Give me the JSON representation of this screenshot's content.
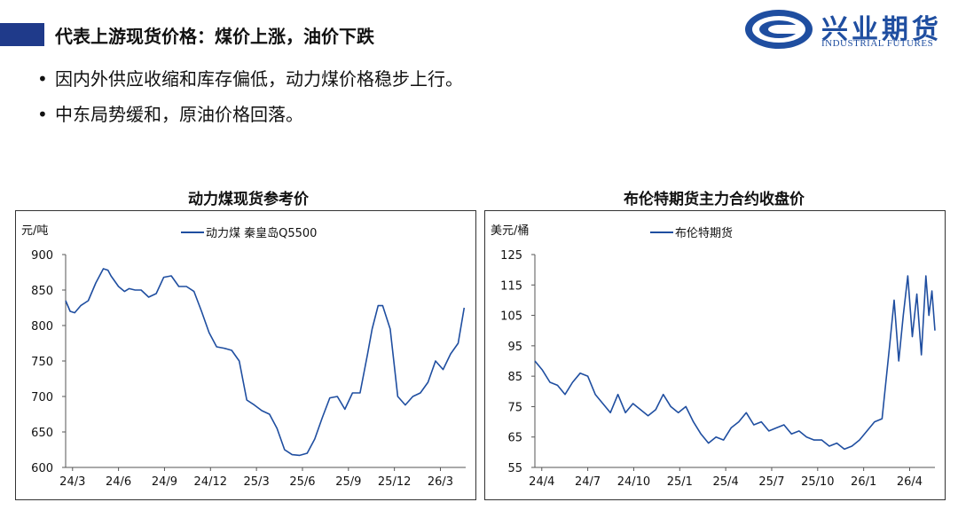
{
  "header": {
    "title": "代表上游现货价格：煤价上涨，油价下跌",
    "logo_cn": "兴业期货",
    "logo_en": "INDUSTRIAL FUTURES"
  },
  "bullets": [
    "因内外供应收缩和库存偏低，动力煤价格稳步上行。",
    "中东局势缓和，原油价格回落。"
  ],
  "colors": {
    "accent": "#1f3a8a",
    "line": "#1f4ea0",
    "logo": "#1f4ea0"
  },
  "chart_data": [
    {
      "type": "line",
      "title": "动力煤现货参考价",
      "ylabel": "元/吨",
      "ylim": [
        600,
        900
      ],
      "yticks": [
        600,
        650,
        700,
        750,
        800,
        850,
        900
      ],
      "xticklabels": [
        "24/3",
        "24/6",
        "24/9",
        "24/12",
        "25/3",
        "25/6",
        "25/9",
        "25/12",
        "26/3"
      ],
      "xlim": [
        0,
        26.5
      ],
      "grid": false,
      "legend": "top",
      "series": [
        {
          "name": "动力煤 秦皇岛Q5500",
          "x": [
            0,
            0.3,
            0.6,
            1.0,
            1.5,
            2.0,
            2.5,
            2.8,
            3.0,
            3.5,
            3.9,
            4.2,
            4.6,
            5.0,
            5.5,
            6.0,
            6.5,
            7.0,
            7.5,
            8.0,
            8.5,
            9.0,
            9.5,
            10.0,
            10.5,
            11.0,
            11.5,
            12.0,
            12.5,
            13.0,
            13.5,
            14.0,
            14.5,
            15.0,
            15.5,
            16.0,
            16.5,
            17.0,
            17.5,
            18.0,
            18.5,
            19.0,
            19.5,
            20.0,
            20.3,
            20.7,
            21.0,
            21.5,
            22.0,
            22.5,
            23.0,
            23.5,
            24.0,
            24.5,
            25.0,
            25.5,
            26.0,
            26.4
          ],
          "values": [
            835,
            820,
            818,
            828,
            835,
            860,
            880,
            878,
            870,
            855,
            848,
            852,
            850,
            850,
            840,
            845,
            868,
            870,
            855,
            855,
            848,
            820,
            790,
            770,
            768,
            765,
            750,
            695,
            688,
            680,
            675,
            655,
            625,
            618,
            617,
            620,
            640,
            670,
            698,
            700,
            682,
            705,
            705,
            760,
            795,
            828,
            828,
            795,
            700,
            688,
            700,
            705,
            720,
            750,
            738,
            760,
            775,
            825
          ]
        }
      ]
    },
    {
      "type": "line",
      "title": "布伦特期货主力合约收盘价",
      "ylabel": "美元/桶",
      "ylim": [
        55,
        125
      ],
      "yticks": [
        55,
        65,
        75,
        85,
        95,
        105,
        115,
        125
      ],
      "xticklabels": [
        "24/4",
        "24/7",
        "24/10",
        "25/1",
        "25/4",
        "25/7",
        "25/10",
        "26/1",
        "26/4"
      ],
      "xlim": [
        0,
        26.5
      ],
      "grid": false,
      "legend": "top",
      "series": [
        {
          "name": "布伦特期货",
          "x": [
            0,
            0.5,
            1.0,
            1.5,
            2.0,
            2.5,
            3.0,
            3.5,
            4.0,
            4.5,
            5.0,
            5.5,
            6.0,
            6.5,
            7.0,
            7.5,
            8.0,
            8.5,
            9.0,
            9.5,
            10.0,
            10.5,
            11.0,
            11.5,
            12.0,
            12.5,
            13.0,
            13.5,
            14.0,
            14.5,
            15.0,
            15.5,
            16.0,
            16.5,
            17.0,
            17.5,
            18.0,
            18.5,
            19.0,
            19.5,
            20.0,
            20.5,
            21.0,
            21.5,
            22.0,
            22.5,
            23.0,
            23.5,
            23.8,
            24.1,
            24.4,
            24.7,
            25.0,
            25.3,
            25.6,
            25.9,
            26.1,
            26.3,
            26.5
          ],
          "values": [
            90,
            87,
            83,
            82,
            79,
            83,
            86,
            85,
            79,
            76,
            73,
            79,
            73,
            76,
            74,
            72,
            74,
            79,
            75,
            73,
            75,
            70,
            66,
            63,
            65,
            64,
            68,
            70,
            73,
            69,
            70,
            67,
            68,
            69,
            66,
            67,
            65,
            64,
            64,
            62,
            63,
            61,
            62,
            64,
            67,
            70,
            71,
            95,
            110,
            90,
            105,
            118,
            98,
            112,
            92,
            118,
            105,
            113,
            100
          ]
        }
      ]
    }
  ]
}
